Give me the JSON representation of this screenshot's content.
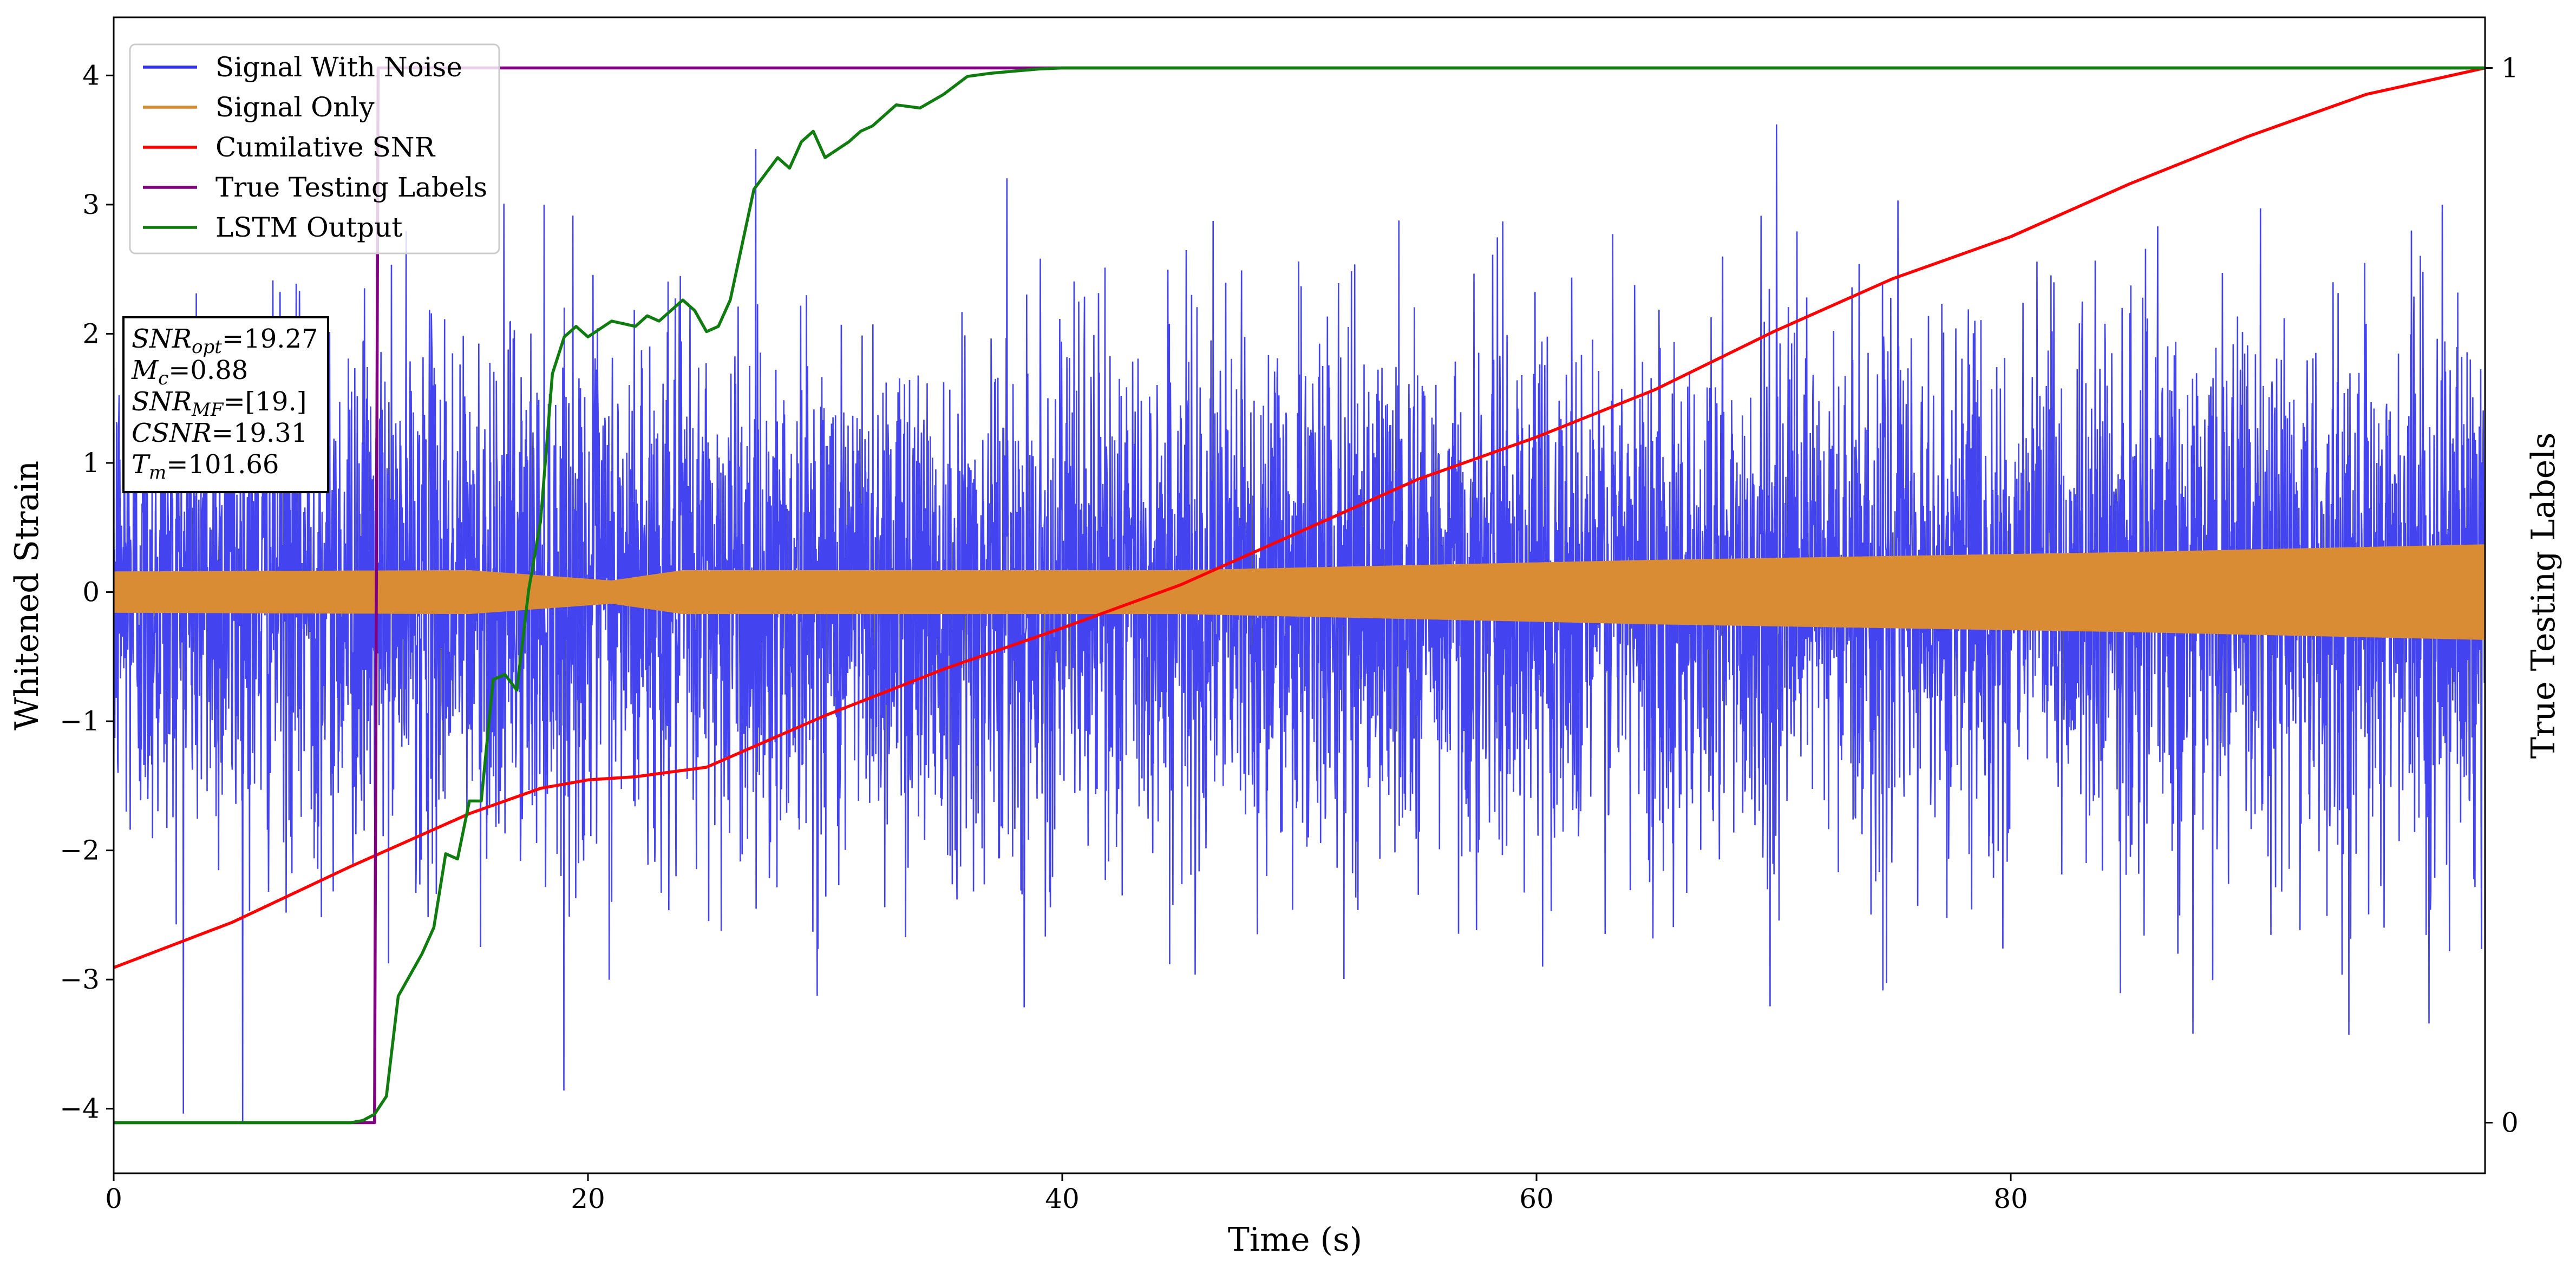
{
  "chart_data": {
    "type": "line",
    "title": "",
    "xlabel": "Time (s)",
    "ylabel": "Whitened Strain",
    "ylabel_right": "True Testing Labels",
    "xlim": [
      0,
      100
    ],
    "ylim": [
      -4.5,
      4.45
    ],
    "ylim_right": [
      -0.048,
      1.048
    ],
    "x_ticks": [
      0,
      20,
      40,
      60,
      80
    ],
    "y_ticks": [
      -4,
      -3,
      -2,
      -1,
      0,
      1,
      2,
      3,
      4
    ],
    "y_ticks_right": [
      0,
      1
    ],
    "legend_position": "upper-left",
    "colors": {
      "signal_with_noise": "#3333ee",
      "signal_only": "#d98c33",
      "cumulative_snr": "#ff0000",
      "true_labels": "#800080",
      "lstm": "#107c10"
    },
    "series": [
      {
        "name": "Signal With Noise",
        "axis": "left",
        "kind": "noise",
        "std": 1.0,
        "x_range": [
          0,
          100
        ]
      },
      {
        "name": "Signal Only",
        "axis": "left",
        "kind": "envelope",
        "x": [
          0,
          15,
          21,
          24,
          45,
          65,
          85,
          100
        ],
        "amplitude": [
          0.16,
          0.17,
          0.09,
          0.17,
          0.17,
          0.25,
          0.31,
          0.37
        ]
      },
      {
        "name": "Cumilative SNR",
        "axis": "right",
        "x": [
          0,
          5,
          10,
          15,
          18,
          20,
          22,
          25,
          30,
          35,
          40,
          45,
          50,
          55,
          60,
          65,
          70,
          75,
          80,
          85,
          90,
          95,
          100
        ],
        "y": [
          0.147,
          0.19,
          0.243,
          0.293,
          0.317,
          0.325,
          0.328,
          0.337,
          0.386,
          0.43,
          0.469,
          0.51,
          0.56,
          0.61,
          0.65,
          0.695,
          0.75,
          0.8,
          0.84,
          0.89,
          0.935,
          0.975,
          1.0
        ]
      },
      {
        "name": "True Testing Labels",
        "axis": "right",
        "x": [
          0,
          11,
          11.15,
          100
        ],
        "y": [
          0,
          0,
          1,
          1
        ]
      },
      {
        "name": "LSTM Output",
        "axis": "right",
        "x": [
          0,
          10,
          10.5,
          11,
          11.5,
          12,
          13,
          13.5,
          14,
          14.5,
          15,
          15.5,
          16,
          16.5,
          17,
          17.5,
          18,
          18.5,
          19,
          19.5,
          20,
          21,
          22,
          22.5,
          23,
          24,
          24.5,
          25,
          25.5,
          26,
          27,
          28,
          28.5,
          29,
          29.5,
          30,
          31,
          31.5,
          32,
          33,
          34,
          35,
          36,
          37,
          38,
          39,
          40,
          100
        ],
        "y": [
          0,
          0,
          0.002,
          0.008,
          0.025,
          0.12,
          0.16,
          0.185,
          0.255,
          0.25,
          0.305,
          0.305,
          0.42,
          0.425,
          0.41,
          0.505,
          0.57,
          0.71,
          0.745,
          0.755,
          0.745,
          0.76,
          0.755,
          0.765,
          0.76,
          0.78,
          0.77,
          0.75,
          0.755,
          0.78,
          0.885,
          0.915,
          0.905,
          0.93,
          0.94,
          0.915,
          0.93,
          0.94,
          0.945,
          0.965,
          0.962,
          0.975,
          0.992,
          0.995,
          0.997,
          0.999,
          1.0,
          1.0
        ]
      }
    ],
    "annotation_lines": [
      {
        "label": "SNR",
        "sub": "opt",
        "value": "=19.27"
      },
      {
        "label": "M",
        "sub": "c",
        "value": "=0.88"
      },
      {
        "label": "SNR",
        "sub": "MF",
        "value": "=[19.]"
      },
      {
        "label": "CSNR",
        "sub": "",
        "value": "=19.31"
      },
      {
        "label": "T",
        "sub": "m",
        "value": "=101.66"
      }
    ]
  }
}
